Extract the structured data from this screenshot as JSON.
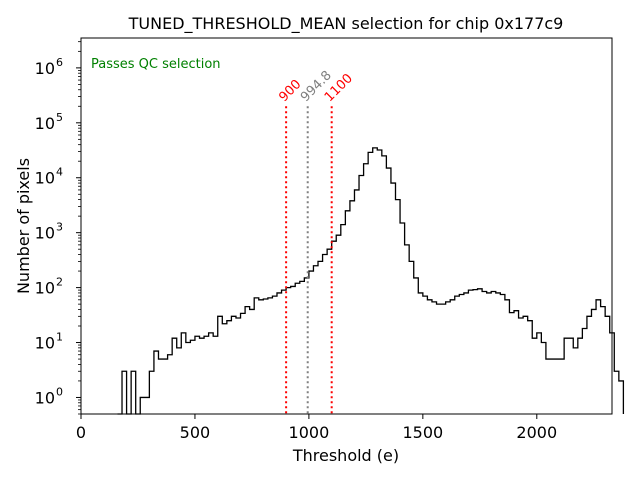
{
  "chart_data": {
    "type": "histogram",
    "title": "TUNED_THRESHOLD_MEAN selection for chip 0x177c9",
    "xlabel": "Threshold (e)",
    "ylabel": "Number of pixels",
    "yscale": "log",
    "xlim": [
      0,
      2330
    ],
    "ylim": [
      0.5,
      3500000
    ],
    "x_ticks": [
      0,
      500,
      1000,
      1500,
      2000
    ],
    "x_tick_labels": [
      "0",
      "500",
      "1000",
      "1500",
      "2000"
    ],
    "y_ticks": [
      1,
      10,
      100,
      1000,
      10000,
      100000,
      1000000
    ],
    "y_tick_labels": [
      {
        "base": "10",
        "exp": "0"
      },
      {
        "base": "10",
        "exp": "1"
      },
      {
        "base": "10",
        "exp": "2"
      },
      {
        "base": "10",
        "exp": "3"
      },
      {
        "base": "10",
        "exp": "4"
      },
      {
        "base": "10",
        "exp": "5"
      },
      {
        "base": "10",
        "exp": "6"
      }
    ],
    "bin_width": 20,
    "bin_start": 160,
    "counts": [
      0,
      3,
      0,
      3,
      0,
      1,
      1,
      3,
      7,
      5,
      5,
      6,
      12,
      8,
      15,
      10,
      11,
      13,
      12,
      13,
      15,
      13,
      30,
      22,
      25,
      30,
      28,
      34,
      45,
      40,
      65,
      60,
      62,
      65,
      70,
      80,
      90,
      100,
      105,
      120,
      130,
      150,
      200,
      250,
      300,
      400,
      500,
      700,
      900,
      1400,
      2500,
      3800,
      6000,
      11000,
      18000,
      29000,
      35000,
      32000,
      25000,
      15000,
      8000,
      4000,
      1500,
      600,
      300,
      150,
      80,
      70,
      60,
      55,
      50,
      50,
      55,
      60,
      70,
      75,
      80,
      90,
      92,
      95,
      85,
      80,
      85,
      80,
      75,
      60,
      35,
      38,
      28,
      30,
      25,
      12,
      15,
      10,
      5,
      5,
      5,
      5,
      12,
      12,
      8,
      12,
      18,
      30,
      40,
      60,
      45,
      30,
      15,
      3,
      2
    ],
    "vlines": [
      {
        "x": 900,
        "label": "900",
        "color": "#ff0000"
      },
      {
        "x": 994.8,
        "label": "994.8",
        "color": "#808080"
      },
      {
        "x": 1100,
        "label": "1100",
        "color": "#ff0000"
      }
    ],
    "annotation": {
      "text": "Passes QC selection",
      "color": "#008000",
      "position": "top-left"
    },
    "colors": {
      "histogram": "#000000",
      "pass": "#008000",
      "cut": "#ff0000",
      "mean": "#808080"
    }
  }
}
